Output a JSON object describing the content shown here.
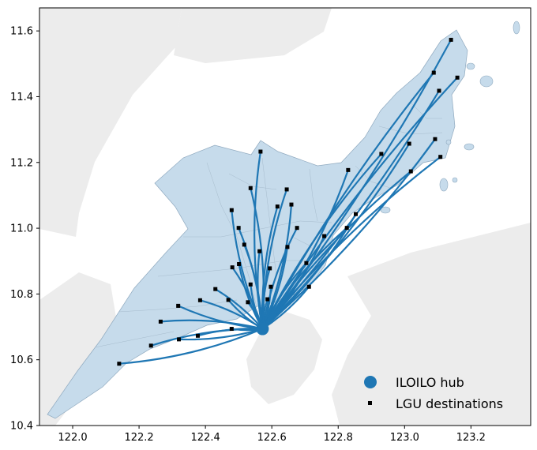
{
  "chart_data": {
    "type": "scatter",
    "title": "",
    "xlabel": "",
    "ylabel": "",
    "xlim": [
      121.9,
      123.38
    ],
    "ylim": [
      10.4,
      11.67
    ],
    "x_ticks": [
      122.0,
      122.2,
      122.4,
      122.6,
      122.8,
      123.0,
      123.2
    ],
    "y_ticks": [
      10.4,
      10.6,
      10.8,
      11.0,
      11.2,
      11.4,
      11.6
    ],
    "x_tick_labels": [
      "122.0",
      "122.2",
      "122.4",
      "122.6",
      "122.8",
      "123.0",
      "123.2"
    ],
    "y_tick_labels": [
      "10.4",
      "10.6",
      "10.8",
      "11.0",
      "11.2",
      "11.4",
      "11.6"
    ],
    "legend_position": "lower-right",
    "colors": {
      "province_fill": "#c6dbeb",
      "land": "#ececec",
      "route": "#1f77b4",
      "hub": "#1f77b4",
      "destination": "#000000"
    },
    "series": [
      {
        "name": "ILOILO hub",
        "marker": "circle",
        "x": [
          122.572
        ],
        "y": [
          10.694
        ]
      },
      {
        "name": "LGU destinations",
        "marker": "square",
        "x": [
          122.14,
          122.236,
          122.32,
          122.377,
          122.479,
          122.265,
          122.318,
          122.384,
          122.469,
          122.43,
          122.536,
          122.528,
          122.587,
          122.597,
          122.594,
          122.712,
          122.704,
          122.647,
          122.563,
          122.481,
          122.501,
          122.517,
          122.676,
          122.758,
          122.826,
          122.853,
          122.617,
          122.659,
          122.645,
          122.536,
          122.479,
          122.5,
          122.566,
          122.83,
          122.93,
          123.014,
          123.019,
          123.092,
          123.108,
          123.104,
          123.088,
          123.14,
          123.159
        ],
        "y": [
          10.588,
          10.643,
          10.662,
          10.673,
          10.694,
          10.716,
          10.764,
          10.781,
          10.782,
          10.815,
          10.829,
          10.775,
          10.784,
          10.822,
          10.878,
          10.822,
          10.894,
          10.943,
          10.93,
          10.881,
          10.891,
          10.95,
          11.001,
          10.976,
          11.001,
          11.043,
          11.066,
          11.072,
          11.118,
          11.122,
          11.055,
          11.001,
          11.233,
          11.177,
          11.226,
          11.257,
          11.173,
          11.271,
          11.217,
          11.418,
          11.473,
          11.573,
          11.458
        ]
      }
    ]
  }
}
